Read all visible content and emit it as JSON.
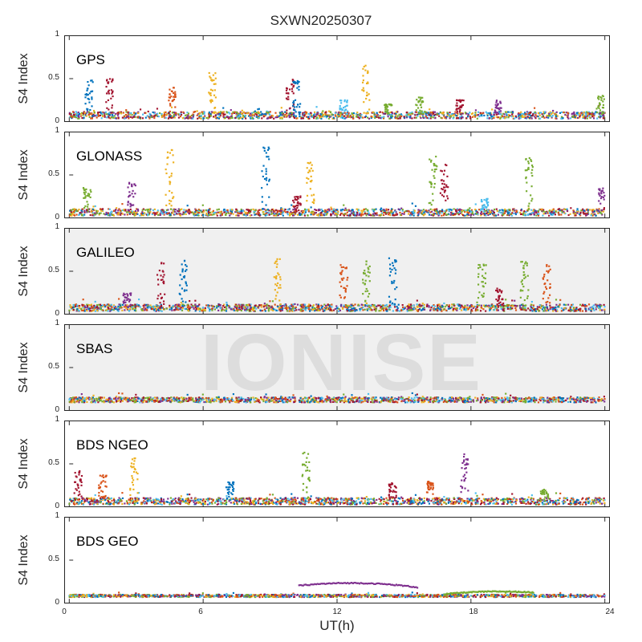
{
  "chart_data": {
    "type": "scatter",
    "title": "SXWN20250307",
    "xlabel": "UT(h)",
    "ylabel": "S4 Index",
    "xlim": [
      0,
      24
    ],
    "ylim": [
      0,
      1
    ],
    "x_ticks": [
      "0",
      "6",
      "12",
      "18",
      "24"
    ],
    "y_ticks": [
      "0",
      "0.5",
      "1"
    ],
    "watermark": "IONISE",
    "colors": [
      "#0072bd",
      "#d95319",
      "#edb120",
      "#7e2f8e",
      "#77ac30",
      "#4dbeee",
      "#a2142f"
    ],
    "panels": [
      {
        "name": "GPS",
        "background": "#ffffff",
        "baseline": 0.07,
        "noise": 0.04,
        "peaks": [
          {
            "t": 0.9,
            "v": 0.5,
            "c": 0
          },
          {
            "t": 1.8,
            "v": 0.5,
            "c": 6
          },
          {
            "t": 4.6,
            "v": 0.4,
            "c": 1
          },
          {
            "t": 6.4,
            "v": 0.57,
            "c": 2
          },
          {
            "t": 9.9,
            "v": 0.52,
            "c": 6
          },
          {
            "t": 10.2,
            "v": 0.48,
            "c": 0
          },
          {
            "t": 12.3,
            "v": 0.25,
            "c": 5
          },
          {
            "t": 13.3,
            "v": 0.67,
            "c": 2
          },
          {
            "t": 14.3,
            "v": 0.2,
            "c": 4
          },
          {
            "t": 15.7,
            "v": 0.28,
            "c": 4
          },
          {
            "t": 17.5,
            "v": 0.25,
            "c": 6
          },
          {
            "t": 19.2,
            "v": 0.25,
            "c": 3
          },
          {
            "t": 23.8,
            "v": 0.3,
            "c": 4
          }
        ]
      },
      {
        "name": "GLONASS",
        "background": "#ffffff",
        "baseline": 0.06,
        "noise": 0.04,
        "peaks": [
          {
            "t": 0.8,
            "v": 0.35,
            "c": 4
          },
          {
            "t": 2.8,
            "v": 0.42,
            "c": 3
          },
          {
            "t": 4.5,
            "v": 0.8,
            "c": 2
          },
          {
            "t": 8.8,
            "v": 0.83,
            "c": 0
          },
          {
            "t": 10.2,
            "v": 0.25,
            "c": 6
          },
          {
            "t": 10.8,
            "v": 0.65,
            "c": 2
          },
          {
            "t": 16.3,
            "v": 0.72,
            "c": 4
          },
          {
            "t": 16.8,
            "v": 0.7,
            "c": 6
          },
          {
            "t": 18.6,
            "v": 0.22,
            "c": 5
          },
          {
            "t": 20.6,
            "v": 0.7,
            "c": 4
          },
          {
            "t": 23.9,
            "v": 0.35,
            "c": 3
          }
        ]
      },
      {
        "name": "GALILEO",
        "background": "#f0f0f0",
        "baseline": 0.07,
        "noise": 0.04,
        "peaks": [
          {
            "t": 2.6,
            "v": 0.25,
            "c": 3
          },
          {
            "t": 4.1,
            "v": 0.6,
            "c": 6
          },
          {
            "t": 5.1,
            "v": 0.68,
            "c": 0
          },
          {
            "t": 9.3,
            "v": 0.65,
            "c": 2
          },
          {
            "t": 12.3,
            "v": 0.58,
            "c": 1
          },
          {
            "t": 13.3,
            "v": 0.62,
            "c": 4
          },
          {
            "t": 14.5,
            "v": 0.68,
            "c": 0
          },
          {
            "t": 18.5,
            "v": 0.58,
            "c": 4
          },
          {
            "t": 19.3,
            "v": 0.3,
            "c": 6
          },
          {
            "t": 20.4,
            "v": 0.62,
            "c": 4
          },
          {
            "t": 21.4,
            "v": 0.58,
            "c": 1
          }
        ]
      },
      {
        "name": "SBAS",
        "background": "#f0f0f0",
        "baseline": 0.12,
        "noise": 0.03,
        "peaks": []
      },
      {
        "name": "BDS NGEO",
        "background": "#ffffff",
        "baseline": 0.06,
        "noise": 0.04,
        "peaks": [
          {
            "t": 0.4,
            "v": 0.42,
            "c": 6
          },
          {
            "t": 1.5,
            "v": 0.38,
            "c": 1
          },
          {
            "t": 2.9,
            "v": 0.6,
            "c": 2
          },
          {
            "t": 7.2,
            "v": 0.3,
            "c": 0
          },
          {
            "t": 10.6,
            "v": 0.68,
            "c": 4
          },
          {
            "t": 14.5,
            "v": 0.28,
            "c": 6
          },
          {
            "t": 16.2,
            "v": 0.3,
            "c": 1
          },
          {
            "t": 17.7,
            "v": 0.62,
            "c": 3
          },
          {
            "t": 21.3,
            "v": 0.2,
            "c": 4
          }
        ]
      },
      {
        "name": "BDS GEO",
        "background": "#ffffff",
        "baseline": 0.08,
        "noise": 0.015,
        "peaks": [],
        "arcs": [
          {
            "t0": 10.3,
            "t1": 15.6,
            "v0": 0.2,
            "vmid": 0.23,
            "v1": 0.18,
            "c": 3
          },
          {
            "t0": 16.8,
            "t1": 20.8,
            "v0": 0.1,
            "vmid": 0.13,
            "v1": 0.12,
            "c": 4
          }
        ]
      }
    ]
  }
}
